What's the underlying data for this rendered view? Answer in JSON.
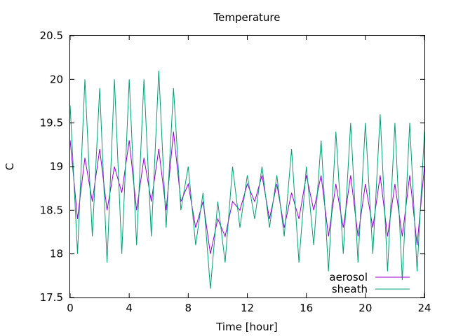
{
  "chart_data": {
    "type": "line",
    "title": "Temperature",
    "xlabel": "Time [hour]",
    "ylabel": "C",
    "xlim": [
      0,
      24
    ],
    "ylim": [
      17.5,
      20.5
    ],
    "xticks": [
      0,
      4,
      8,
      12,
      16,
      20,
      24
    ],
    "yticks": [
      17.5,
      18,
      18.5,
      19,
      19.5,
      20,
      20.5
    ],
    "grid": false,
    "legend_position": "bottom-right",
    "series": [
      {
        "name": "aerosol",
        "color": "#9400d3",
        "x": [
          0,
          0.5,
          1,
          1.5,
          2,
          2.5,
          3,
          3.5,
          4,
          4.5,
          5,
          5.5,
          6,
          6.5,
          7,
          7.5,
          8,
          8.5,
          9,
          9.5,
          10,
          10.5,
          11,
          11.5,
          12,
          12.5,
          13,
          13.5,
          14,
          14.5,
          15,
          15.5,
          16,
          16.5,
          17,
          17.5,
          18,
          18.5,
          19,
          19.5,
          20,
          20.5,
          21,
          21.5,
          22,
          22.5,
          23,
          23.5,
          24
        ],
        "y": [
          19.3,
          18.4,
          19.1,
          18.6,
          19.2,
          18.5,
          19.0,
          18.7,
          19.3,
          18.5,
          19.1,
          18.6,
          19.2,
          18.5,
          19.4,
          18.6,
          18.8,
          18.3,
          18.6,
          18.0,
          18.4,
          18.2,
          18.6,
          18.5,
          18.8,
          18.6,
          18.9,
          18.4,
          18.8,
          18.3,
          18.7,
          18.4,
          18.9,
          18.5,
          18.9,
          18.2,
          18.8,
          18.3,
          18.9,
          18.2,
          18.8,
          18.3,
          18.9,
          18.2,
          18.8,
          18.2,
          18.9,
          18.1,
          19.0
        ]
      },
      {
        "name": "sheath",
        "color": "#009e73",
        "x": [
          0,
          0.5,
          1,
          1.5,
          2,
          2.5,
          3,
          3.5,
          4,
          4.5,
          5,
          5.5,
          6,
          6.5,
          7,
          7.5,
          8,
          8.5,
          9,
          9.5,
          10,
          10.5,
          11,
          11.5,
          12,
          12.5,
          13,
          13.5,
          14,
          14.5,
          15,
          15.5,
          16,
          16.5,
          17,
          17.5,
          18,
          18.5,
          19,
          19.5,
          20,
          20.5,
          21,
          21.5,
          22,
          22.5,
          23,
          23.5,
          24
        ],
        "y": [
          19.7,
          18.0,
          20.0,
          18.2,
          19.9,
          17.9,
          20.0,
          18.0,
          20.0,
          18.1,
          20.0,
          18.2,
          20.1,
          18.3,
          19.9,
          18.5,
          19.0,
          18.1,
          18.7,
          17.6,
          18.6,
          17.9,
          19.0,
          18.3,
          18.9,
          18.4,
          19.0,
          18.3,
          18.9,
          18.2,
          19.2,
          17.9,
          19.0,
          18.1,
          19.3,
          17.8,
          19.4,
          18.0,
          19.5,
          17.9,
          19.5,
          18.0,
          19.6,
          17.8,
          19.5,
          17.7,
          19.5,
          17.8,
          19.4
        ]
      }
    ]
  }
}
